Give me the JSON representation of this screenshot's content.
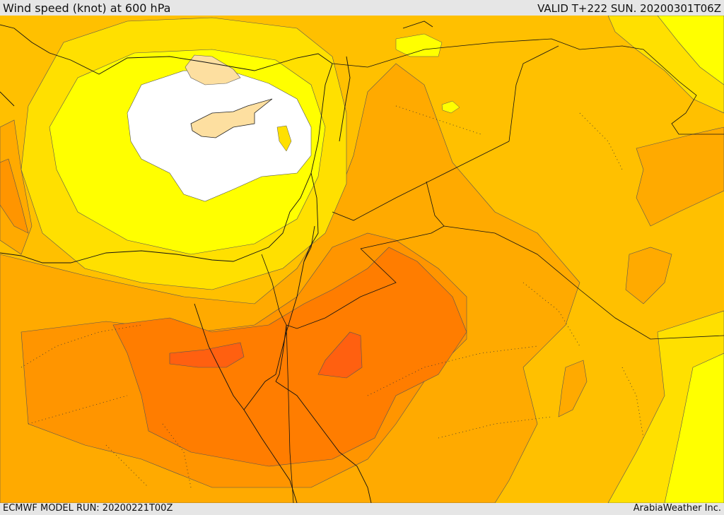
{
  "header": {
    "title": "Wind speed (knot) at 600 hPa",
    "valid": "VALID T+222 SUN. 20200301T06Z"
  },
  "footer": {
    "model_run": "ECMWF MODEL RUN: 20200221T00Z",
    "credit": "ArabiaWeather Inc."
  },
  "colors": {
    "calm": "#ffffff",
    "light": "#fddfa0",
    "yellow_bright": "#ffff00",
    "yellow": "#ffe000",
    "gold": "#ffc000",
    "orange_light": "#ffaa00",
    "orange": "#ff9500",
    "orange_dark": "#ff7d00",
    "red_orange": "#ff6010"
  }
}
